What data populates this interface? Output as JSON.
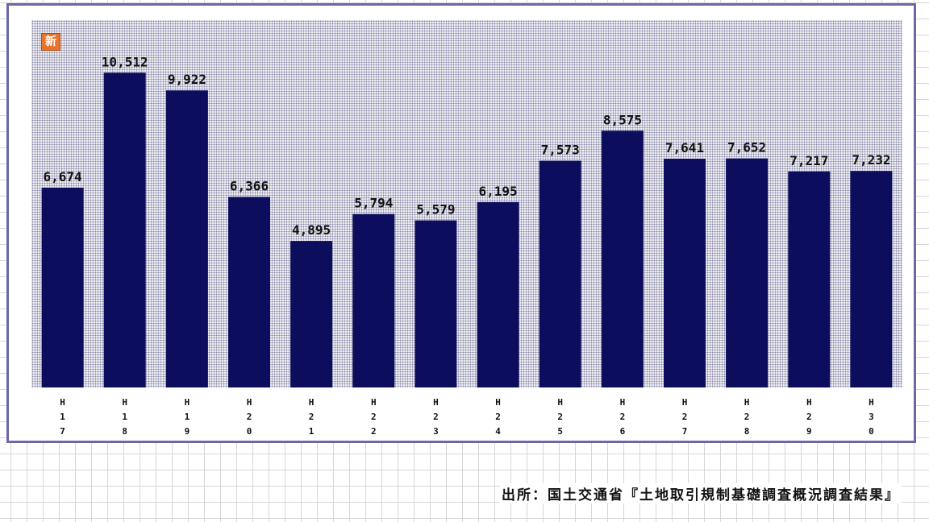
{
  "badge": {
    "text": "新",
    "color": "#e8742c"
  },
  "source": {
    "text": "出所：国土交通省『土地取引規制基礎調査概況調査結果』"
  },
  "chart_data": {
    "type": "bar",
    "categories": [
      "H17",
      "H18",
      "H19",
      "H20",
      "H21",
      "H22",
      "H23",
      "H24",
      "H25",
      "H26",
      "H27",
      "H28",
      "H29",
      "H30"
    ],
    "tick_labels": [
      [
        "H",
        "1",
        "7"
      ],
      [
        "H",
        "1",
        "8"
      ],
      [
        "H",
        "1",
        "9"
      ],
      [
        "H",
        "2",
        "0"
      ],
      [
        "H",
        "2",
        "1"
      ],
      [
        "H",
        "2",
        "2"
      ],
      [
        "H",
        "2",
        "3"
      ],
      [
        "H",
        "2",
        "4"
      ],
      [
        "H",
        "2",
        "5"
      ],
      [
        "H",
        "2",
        "6"
      ],
      [
        "H",
        "2",
        "7"
      ],
      [
        "H",
        "2",
        "8"
      ],
      [
        "H",
        "2",
        "9"
      ],
      [
        "H",
        "3",
        "0"
      ]
    ],
    "values": [
      6674,
      10512,
      9922,
      6366,
      4895,
      5794,
      5579,
      6195,
      7573,
      8575,
      7641,
      7652,
      7217,
      7232
    ],
    "data_labels": [
      "6,674",
      "10,512",
      "9,922",
      "6,366",
      "4,895",
      "5,794",
      "5,579",
      "6,195",
      "7,573",
      "8,575",
      "7,641",
      "7,652",
      "7,217",
      "7,232"
    ],
    "ylim": [
      0,
      12000
    ],
    "grid": false,
    "colors": {
      "bar": "#0d0d5e",
      "frame": "#6b68a8"
    }
  }
}
